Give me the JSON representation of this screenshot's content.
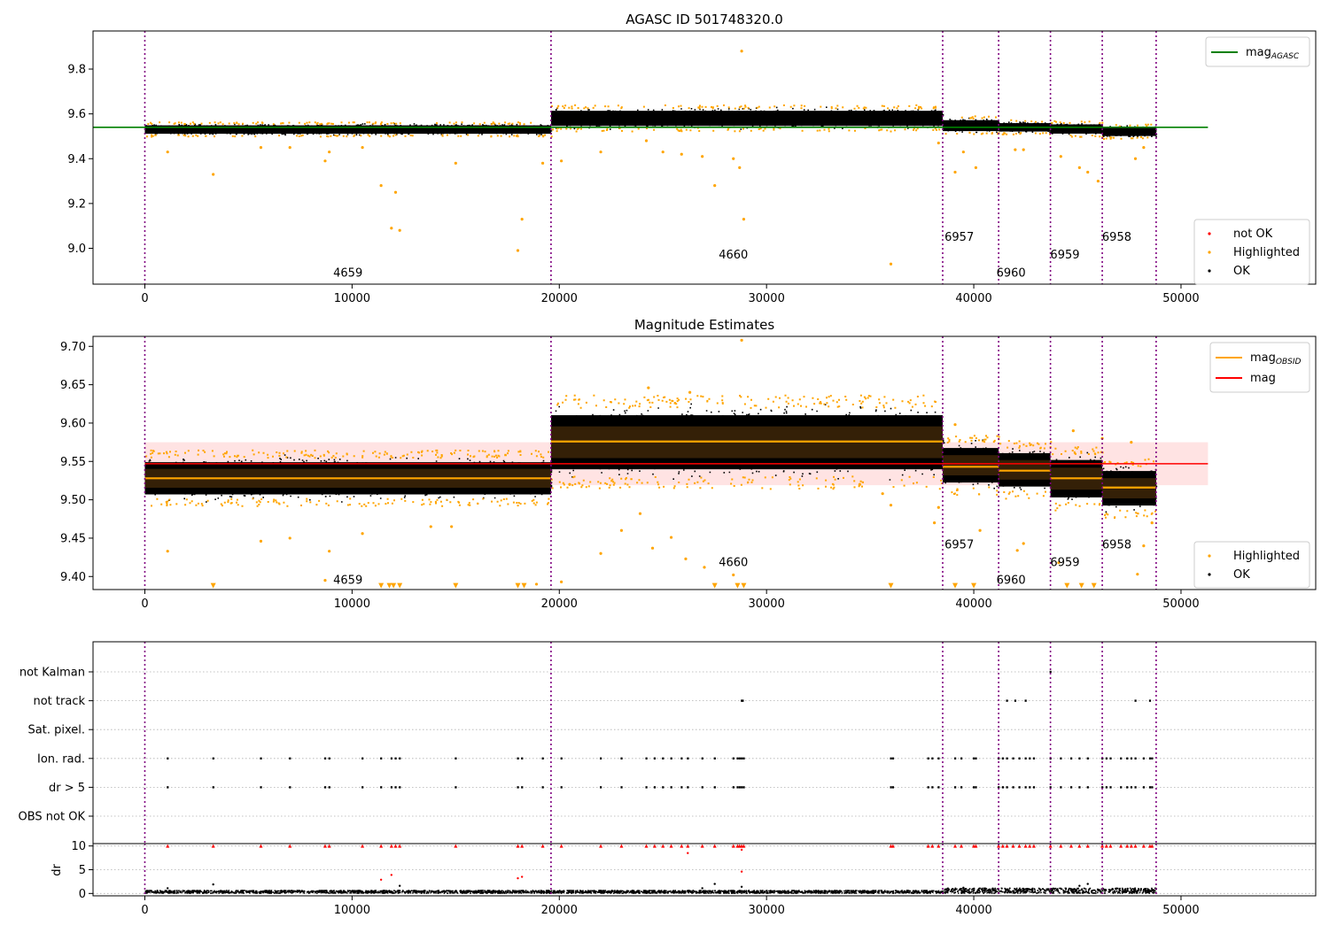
{
  "chart_data": [
    {
      "type": "scatter",
      "title": "AGASC ID 501748320.0",
      "xlim": [
        -2500,
        56500
      ],
      "ylim": [
        8.84,
        9.97
      ],
      "xticks": [
        0,
        10000,
        20000,
        30000,
        40000,
        50000
      ],
      "yticks": [
        9.0,
        9.2,
        9.4,
        9.6,
        9.8
      ],
      "legend_lines": [
        {
          "label": "mag",
          "sub": "AGASC",
          "color": "#008000"
        }
      ],
      "legend_points": [
        {
          "label": "not OK",
          "color": "#ff0000"
        },
        {
          "label": "Highlighted",
          "color": "#ffa500"
        },
        {
          "label": "OK",
          "color": "#000000"
        }
      ],
      "mag_agasc": 9.54,
      "segments": [
        {
          "x0": 0,
          "x1": 19600,
          "y_lo": 9.505,
          "y_hi": 9.555
        },
        {
          "x0": 19600,
          "x1": 38500,
          "y_lo": 9.535,
          "y_hi": 9.625
        },
        {
          "x0": 38500,
          "x1": 41200,
          "y_lo": 9.515,
          "y_hi": 9.58
        },
        {
          "x0": 41200,
          "x1": 43700,
          "y_lo": 9.515,
          "y_hi": 9.565
        },
        {
          "x0": 43700,
          "x1": 46200,
          "y_lo": 9.505,
          "y_hi": 9.56
        },
        {
          "x0": 46200,
          "x1": 48800,
          "y_lo": 9.495,
          "y_hi": 9.545
        }
      ],
      "highlighted": [
        [
          1100,
          9.43
        ],
        [
          3300,
          9.33
        ],
        [
          5600,
          9.45
        ],
        [
          7000,
          9.45
        ],
        [
          8700,
          9.39
        ],
        [
          8900,
          9.43
        ],
        [
          10500,
          9.45
        ],
        [
          11400,
          9.28
        ],
        [
          11900,
          9.09
        ],
        [
          12100,
          9.25
        ],
        [
          12300,
          9.08
        ],
        [
          15000,
          9.38
        ],
        [
          18000,
          8.99
        ],
        [
          18200,
          9.13
        ],
        [
          19200,
          9.38
        ],
        [
          20100,
          9.39
        ],
        [
          22000,
          9.43
        ],
        [
          24200,
          9.48
        ],
        [
          25000,
          9.43
        ],
        [
          25900,
          9.42
        ],
        [
          26900,
          9.41
        ],
        [
          27500,
          9.28
        ],
        [
          28400,
          9.4
        ],
        [
          28700,
          9.36
        ],
        [
          28800,
          9.88
        ],
        [
          28900,
          9.13
        ],
        [
          36000,
          8.93
        ],
        [
          38300,
          9.47
        ],
        [
          39100,
          9.34
        ],
        [
          39500,
          9.43
        ],
        [
          40100,
          9.36
        ],
        [
          42000,
          9.44
        ],
        [
          42400,
          9.44
        ],
        [
          44200,
          9.41
        ],
        [
          45100,
          9.36
        ],
        [
          45500,
          9.34
        ],
        [
          46000,
          9.3
        ],
        [
          47800,
          9.4
        ],
        [
          48200,
          9.45
        ]
      ],
      "obsid_labels": [
        {
          "text": "4659",
          "x": 9800,
          "y": 8.89
        },
        {
          "text": "4660",
          "x": 28400,
          "y": 8.97
        },
        {
          "text": "6957",
          "x": 39300,
          "y": 9.05
        },
        {
          "text": "6960",
          "x": 41800,
          "y": 8.89
        },
        {
          "text": "6959",
          "x": 44400,
          "y": 8.97
        },
        {
          "text": "6958",
          "x": 46900,
          "y": 9.05
        }
      ],
      "vlines": [
        0,
        19600,
        38500,
        41200,
        43700,
        46200,
        48800
      ]
    },
    {
      "type": "scatter",
      "title": "Magnitude Estimates",
      "xlim": [
        -2500,
        56500
      ],
      "ylim": [
        9.383,
        9.713
      ],
      "xticks": [
        0,
        10000,
        20000,
        30000,
        40000,
        50000
      ],
      "yticks": [
        9.4,
        9.45,
        9.5,
        9.55,
        9.6,
        9.65,
        9.7
      ],
      "legend_lines": [
        {
          "label": "mag",
          "sub": "OBSID",
          "color": "#ffa500"
        },
        {
          "label": "mag",
          "sub": "",
          "color": "#ff0000"
        }
      ],
      "legend_points": [
        {
          "label": "Highlighted",
          "color": "#ffa500"
        },
        {
          "label": "OK",
          "color": "#000000"
        }
      ],
      "mag": 9.547,
      "mag_band": [
        9.519,
        9.575
      ],
      "mag_obsid": [
        {
          "x0": 0,
          "x1": 19600,
          "y": 9.528
        },
        {
          "x0": 19600,
          "x1": 38500,
          "y": 9.576
        },
        {
          "x0": 38500,
          "x1": 41200,
          "y": 9.543
        },
        {
          "x0": 41200,
          "x1": 43700,
          "y": 9.538
        },
        {
          "x0": 43700,
          "x1": 46200,
          "y": 9.528
        },
        {
          "x0": 46200,
          "x1": 48800,
          "y": 9.516
        }
      ],
      "segments": [
        {
          "x0": 0,
          "x1": 19600,
          "y_lo": 9.5,
          "y_hi": 9.556
        },
        {
          "x0": 19600,
          "x1": 38500,
          "y_lo": 9.528,
          "y_hi": 9.622
        },
        {
          "x0": 38500,
          "x1": 41200,
          "y_lo": 9.515,
          "y_hi": 9.575
        },
        {
          "x0": 41200,
          "x1": 43700,
          "y_lo": 9.51,
          "y_hi": 9.568
        },
        {
          "x0": 43700,
          "x1": 46200,
          "y_lo": 9.495,
          "y_hi": 9.56
        },
        {
          "x0": 46200,
          "x1": 48800,
          "y_lo": 9.485,
          "y_hi": 9.545
        }
      ],
      "highlighted": [
        [
          1100,
          9.433
        ],
        [
          5600,
          9.446
        ],
        [
          7000,
          9.45
        ],
        [
          8700,
          9.395
        ],
        [
          8900,
          9.433
        ],
        [
          10500,
          9.456
        ],
        [
          13800,
          9.465
        ],
        [
          14800,
          9.465
        ],
        [
          18900,
          9.39
        ],
        [
          20100,
          9.393
        ],
        [
          20500,
          9.52
        ],
        [
          22000,
          9.43
        ],
        [
          23000,
          9.46
        ],
        [
          23900,
          9.482
        ],
        [
          24500,
          9.437
        ],
        [
          24300,
          9.646
        ],
        [
          25400,
          9.451
        ],
        [
          26100,
          9.423
        ],
        [
          26300,
          9.64
        ],
        [
          27000,
          9.412
        ],
        [
          28400,
          9.402
        ],
        [
          28800,
          9.708
        ],
        [
          34500,
          9.52
        ],
        [
          35600,
          9.508
        ],
        [
          36000,
          9.493
        ],
        [
          38100,
          9.47
        ],
        [
          38300,
          9.49
        ],
        [
          39100,
          9.598
        ],
        [
          40300,
          9.46
        ],
        [
          42100,
          9.434
        ],
        [
          42400,
          9.443
        ],
        [
          44100,
          9.418
        ],
        [
          44800,
          9.59
        ],
        [
          46200,
          9.58
        ],
        [
          47600,
          9.575
        ],
        [
          47900,
          9.403
        ],
        [
          48200,
          9.44
        ],
        [
          48600,
          9.47
        ]
      ],
      "offscale_markers_y": 9.388,
      "offscale_markers_x": [
        3300,
        11400,
        11800,
        12000,
        12300,
        15000,
        18000,
        18300,
        27500,
        28600,
        28900,
        36000,
        39100,
        40000,
        44500,
        45200,
        45800
      ],
      "obsid_labels": [
        {
          "text": "4659",
          "x": 9800,
          "y": 9.395
        },
        {
          "text": "4660",
          "x": 28400,
          "y": 9.418
        },
        {
          "text": "6957",
          "x": 39300,
          "y": 9.441
        },
        {
          "text": "6960",
          "x": 41800,
          "y": 9.395
        },
        {
          "text": "6959",
          "x": 44400,
          "y": 9.418
        },
        {
          "text": "6958",
          "x": 46900,
          "y": 9.441
        }
      ],
      "vlines": [
        0,
        19600,
        38500,
        41200,
        43700,
        46200,
        48800
      ]
    },
    {
      "type": "scatter",
      "title": "",
      "xlim": [
        -2500,
        56500
      ],
      "categories": [
        "not Kalman",
        "not track",
        "Sat. pixel.",
        "Ion. rad.",
        "dr > 5",
        "OBS not OK"
      ],
      "flags": {
        "not Kalman": [
          43700
        ],
        "not track": [
          28800,
          28850,
          41600,
          42000,
          42500,
          47800,
          48500
        ],
        "Sat. pixel.": [],
        "Ion. rad.": [
          1100,
          3300,
          5600,
          7000,
          8700,
          8900,
          10500,
          11400,
          11900,
          12100,
          12300,
          15000,
          18000,
          18200,
          19200,
          20100,
          22000,
          23000,
          24200,
          24600,
          25000,
          25400,
          25900,
          26200,
          26900,
          27500,
          28400,
          28600,
          28700,
          28800,
          28900,
          36000,
          36100,
          37800,
          38000,
          38300,
          39100,
          39400,
          40000,
          40100,
          41200,
          41400,
          41600,
          41900,
          42200,
          42500,
          42700,
          42900,
          43700,
          44200,
          44700,
          45100,
          45500,
          46200,
          46400,
          46600,
          47100,
          47400,
          47600,
          47800,
          48200,
          48500,
          48600
        ],
        "dr > 5": [
          1100,
          3300,
          5600,
          7000,
          8700,
          8900,
          10500,
          11400,
          11900,
          12100,
          12300,
          15000,
          18000,
          18200,
          19200,
          20100,
          22000,
          23000,
          24200,
          24600,
          25000,
          25400,
          25900,
          26200,
          26900,
          27500,
          28400,
          28600,
          28700,
          28800,
          28900,
          36000,
          36100,
          37800,
          38000,
          38300,
          39100,
          39400,
          40000,
          40100,
          41200,
          41400,
          41600,
          41900,
          42200,
          42500,
          42700,
          42900,
          43700,
          44200,
          44700,
          45100,
          45500,
          46200,
          46400,
          46600,
          47100,
          47400,
          47600,
          47800,
          48200,
          48500,
          48600
        ],
        "OBS not OK": []
      },
      "vlines": [
        0,
        19600,
        38500,
        41200,
        43700,
        46200,
        48800
      ]
    },
    {
      "type": "scatter",
      "title": "",
      "ylabel": "dr",
      "xlim": [
        -2500,
        56500
      ],
      "ylim": [
        -0.5,
        10.5
      ],
      "xticks": [
        0,
        10000,
        20000,
        30000,
        40000,
        50000
      ],
      "yticks": [
        0,
        5,
        10
      ],
      "dr_clipped_x": [
        1100,
        3300,
        5600,
        7000,
        8700,
        8900,
        10500,
        11400,
        11900,
        12100,
        12300,
        15000,
        18000,
        18200,
        19200,
        20100,
        22000,
        23000,
        24200,
        24600,
        25000,
        25400,
        25900,
        26200,
        26900,
        27500,
        28400,
        28600,
        28700,
        28800,
        28900,
        36000,
        36100,
        37800,
        38000,
        38300,
        39100,
        39400,
        40000,
        40100,
        41200,
        41400,
        41600,
        41900,
        42200,
        42500,
        42700,
        42900,
        43700,
        44200,
        44700,
        45100,
        45500,
        46200,
        46400,
        46600,
        47100,
        47400,
        47600,
        47800,
        48200,
        48500,
        48600
      ],
      "dr_notok": [
        [
          11400,
          2.9
        ],
        [
          11900,
          3.9
        ],
        [
          18000,
          3.2
        ],
        [
          18200,
          3.5
        ],
        [
          26200,
          8.5
        ],
        [
          28800,
          4.6
        ],
        [
          28800,
          9.2
        ]
      ],
      "dr_ok": [
        [
          1100,
          1.1
        ],
        [
          3300,
          1.9
        ],
        [
          12300,
          1.6
        ],
        [
          26900,
          1.1
        ],
        [
          27500,
          2.0
        ],
        [
          28800,
          1.4
        ],
        [
          39500,
          1.2
        ],
        [
          45100,
          1.6
        ],
        [
          45500,
          2.0
        ]
      ],
      "vlines": [
        0,
        19600,
        38500,
        41200,
        43700,
        46200,
        48800
      ]
    }
  ]
}
